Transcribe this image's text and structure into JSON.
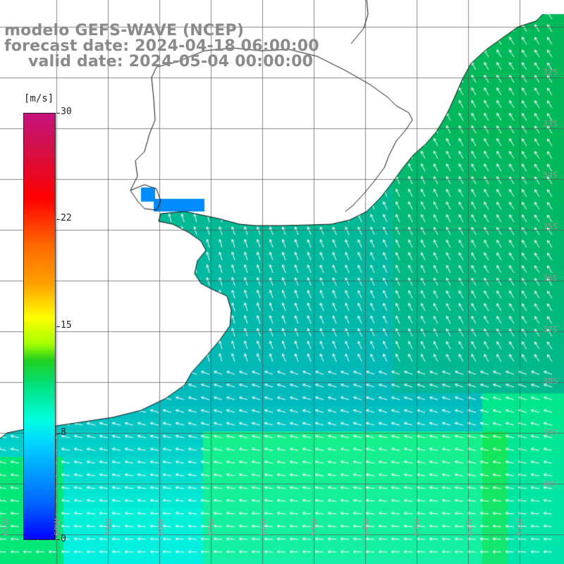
{
  "title": {
    "line1": "modelo GEFS-WAVE (NCEP)",
    "line2": "forecast date: 2024-04-18 06:00:00",
    "line3": "valid date: 2024-05-04 00:00:00"
  },
  "colorbar": {
    "unit": "[m/s]",
    "ticks": [
      "30",
      "22",
      "15",
      "8",
      "0"
    ],
    "tick_values": [
      30,
      22,
      15,
      8,
      0
    ],
    "min": 0,
    "max": 30
  },
  "map": {
    "variable": "wind speed",
    "lat_labels": [
      "32S",
      "33S",
      "34S",
      "35S",
      "36S",
      "37S",
      "38S",
      "39S",
      "40S"
    ],
    "lon_labels": [
      "61W",
      "60W",
      "59W",
      "58W",
      "57W",
      "56W",
      "55W",
      "54W",
      "53W",
      "52W",
      "51W"
    ],
    "colors": {
      "land": "#ffffff",
      "grid": "#555555",
      "coast": "#111111",
      "arrow": "#ffffff",
      "label": "#9a9a9a"
    }
  }
}
